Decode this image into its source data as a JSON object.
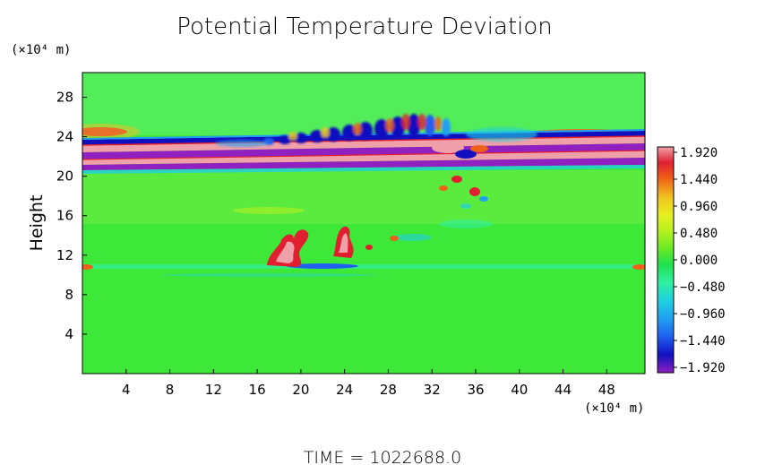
{
  "chart_data": {
    "type": "heatmap",
    "title": "Potential Temperature Deviation",
    "ylabel": "Height",
    "x_unit_label": "(×10⁴ m)",
    "y_unit_label": "(×10⁴ m)",
    "footer": "TIME = 1022688.0",
    "xlim": [
      0,
      51.5
    ],
    "ylim": [
      0,
      30.5
    ],
    "x_ticks": [
      4,
      8,
      12,
      16,
      20,
      24,
      28,
      32,
      36,
      40,
      44,
      48
    ],
    "y_ticks": [
      4,
      8,
      12,
      16,
      20,
      24,
      28
    ],
    "grid": false,
    "colorbar": {
      "position": "right",
      "range": [
        -1.92,
        1.92
      ],
      "tick_values": [
        1.92,
        1.44,
        0.96,
        0.48,
        0.0,
        -0.48,
        -0.96,
        -1.44,
        -1.92
      ],
      "tick_labels": [
        "1.920",
        "1.440",
        "0.960",
        "0.480",
        "0.000",
        "−0.480",
        "−0.960",
        "−1.440",
        "−1.920"
      ],
      "colors_top_to_bottom": [
        "#f0a0a8",
        "#e02030",
        "#f06018",
        "#f0c020",
        "#e8f020",
        "#b0f020",
        "#60e828",
        "#20e050",
        "#30f0a0",
        "#20d0e0",
        "#20a0f0",
        "#2060f0",
        "#1010c0",
        "#6010a0",
        "#9020c0"
      ]
    },
    "field_values": {
      "background": 0.0,
      "upper_warm_bands_near_y": [
        21,
        22.5,
        23.5
      ],
      "upper_cold_bands_near_y": [
        20,
        21.5,
        22.8
      ],
      "wave_train_x_range": [
        18,
        36
      ],
      "convective_warm_cells_x": [
        19,
        24
      ],
      "convective_cell_height": 12,
      "cold_layer_near_y": 10.5
    }
  }
}
